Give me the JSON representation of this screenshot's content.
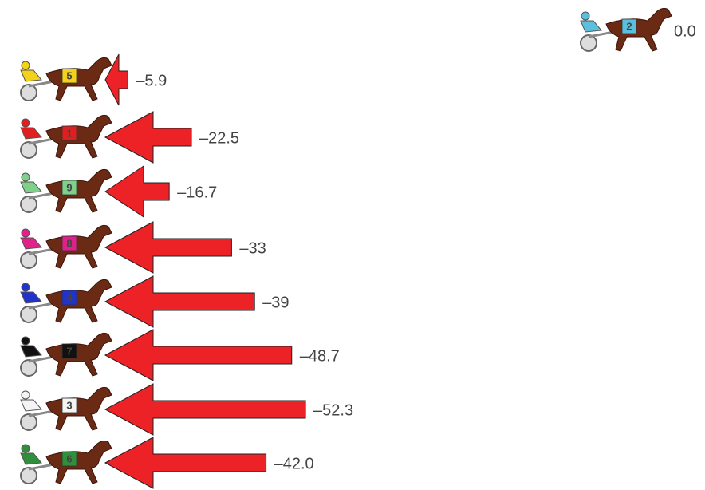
{
  "chart_data": {
    "type": "arrow",
    "leader": {
      "label": "2",
      "color": "#5bc0de",
      "number_color": "#d62020",
      "value": 0.0,
      "value_label": "0.0"
    },
    "categories": [
      "5",
      "1",
      "9",
      "8",
      "4",
      "7",
      "3",
      "6"
    ],
    "horse_colors": [
      "#f2d21b",
      "#e02020",
      "#7fd08a",
      "#e0218a",
      "#2233cc",
      "#111111",
      "#f4f4f4",
      "#2f8f3a"
    ],
    "number_colors": [
      "#222222",
      "#ffffff",
      "#1c5a2a",
      "#222222",
      "#ffffff",
      "#f2d21b",
      "#111111",
      "#d62020"
    ],
    "values": [
      -5.9,
      -22.5,
      -16.7,
      -33,
      -39,
      -48.7,
      -52.3,
      -42.0
    ],
    "value_labels": [
      "–5.9",
      "–22.5",
      "–16.7",
      "–33",
      "–39",
      "–48.7",
      "–52.3",
      "–42.0"
    ],
    "color": "#ec2227"
  }
}
